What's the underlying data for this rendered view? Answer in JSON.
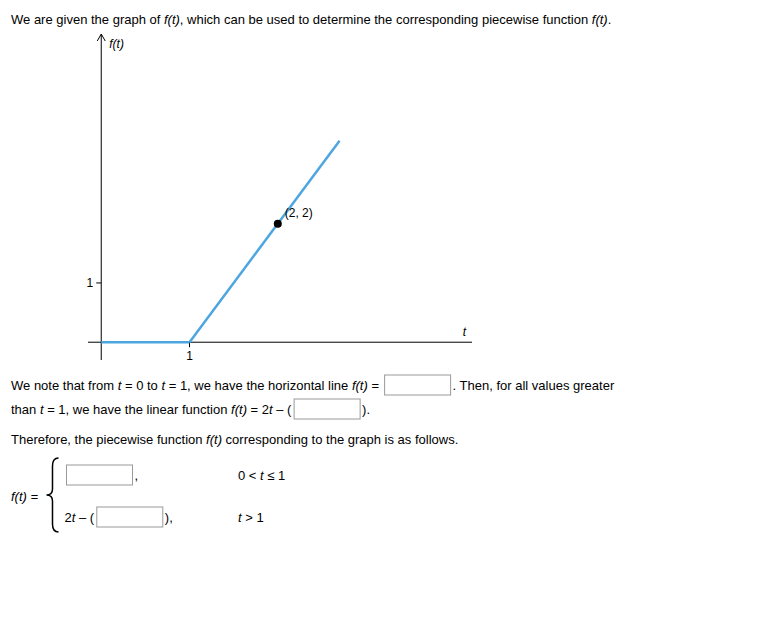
{
  "chart_data": {
    "type": "line",
    "title": "We are given the graph of f(t), which can be used to determine the corresponding piecewise function f(t).",
    "x_label": "t",
    "y_label": "f(t)",
    "series": [
      {
        "type": "line",
        "color": "#4da6e0",
        "x": [
          0,
          1
        ],
        "values": [
          0,
          0
        ]
      },
      {
        "type": "line",
        "color": "#4da6e0",
        "x": [
          1,
          2.7
        ],
        "values": [
          0,
          3.4
        ]
      },
      {
        "type": "scatter",
        "color": "#000000",
        "marker": "circle",
        "data_labels": true,
        "x": [
          2
        ],
        "values": [
          2
        ],
        "value_labels": [
          "(2, 2)"
        ]
      }
    ],
    "xlim": [
      -0.15,
      4.2
    ],
    "ylim": [
      -0.3,
      5.2
    ],
    "xticks": [
      1
    ],
    "yticks": [
      1
    ],
    "grid": false,
    "annotations": [
      {
        "parts": [
          "We note that from t = 0 to t = 1, we have the horizontal line f(t) = ",
          ". Then, for all values greater"
        ]
      },
      {
        "parts": [
          "than t = 1, we have the linear function f(t) = 2t – (",
          ")."
        ]
      },
      {
        "parts": [
          "Therefore, the piecewise function f(t) corresponding to the graph is as follows."
        ]
      }
    ],
    "piecewise": {
      "label": "f(t) =",
      "cases": [
        {
          "parts": [
            null,
            ","
          ],
          "condition": "0 < t ≤ 1"
        },
        {
          "parts": [
            "2t – (",
            "),"
          ],
          "condition": "t > 1"
        }
      ]
    }
  }
}
